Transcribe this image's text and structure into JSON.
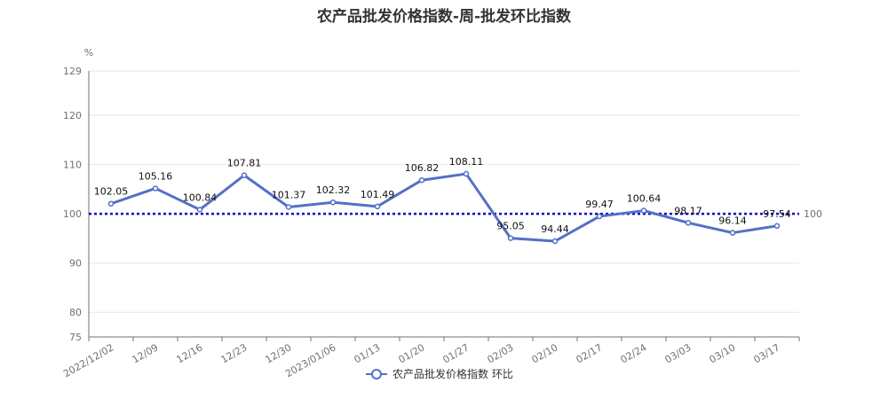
{
  "chart_data": {
    "type": "line",
    "title": "农产品批发价格指数-周-批发环比指数",
    "ylabel": "%",
    "xlabel": "",
    "categories": [
      "2022/12/02",
      "12/09",
      "12/16",
      "12/23",
      "12/30",
      "2023/01/06",
      "01/13",
      "01/20",
      "01/27",
      "02/03",
      "02/10",
      "02/17",
      "02/24",
      "03/03",
      "03/10",
      "03/17"
    ],
    "series": [
      {
        "name": "农产品批发价格指数 环比",
        "values": [
          102.05,
          105.16,
          100.84,
          107.81,
          101.37,
          102.32,
          101.49,
          106.82,
          108.11,
          95.05,
          94.44,
          99.47,
          100.64,
          98.17,
          96.14,
          97.54
        ]
      }
    ],
    "data_labels": [
      "102.05",
      "105.16",
      "100.84",
      "107.81",
      "101.37",
      "102.32",
      "101.49",
      "106.82",
      "108.11",
      "95.05",
      "94.44",
      "99.47",
      "100.64",
      "98.17",
      "96.14",
      "97.54"
    ],
    "yticks": [
      75,
      80,
      90,
      100,
      110,
      120,
      129
    ],
    "ylim": [
      75,
      129
    ],
    "reference_line": {
      "value": 100,
      "label": "100",
      "color": "#0000cc",
      "style": "dotted"
    },
    "grid": true,
    "legend_position": "bottom",
    "colors": {
      "series": "#5470c6",
      "grid": "#e6e6ee",
      "axis": "#6e7079"
    }
  }
}
